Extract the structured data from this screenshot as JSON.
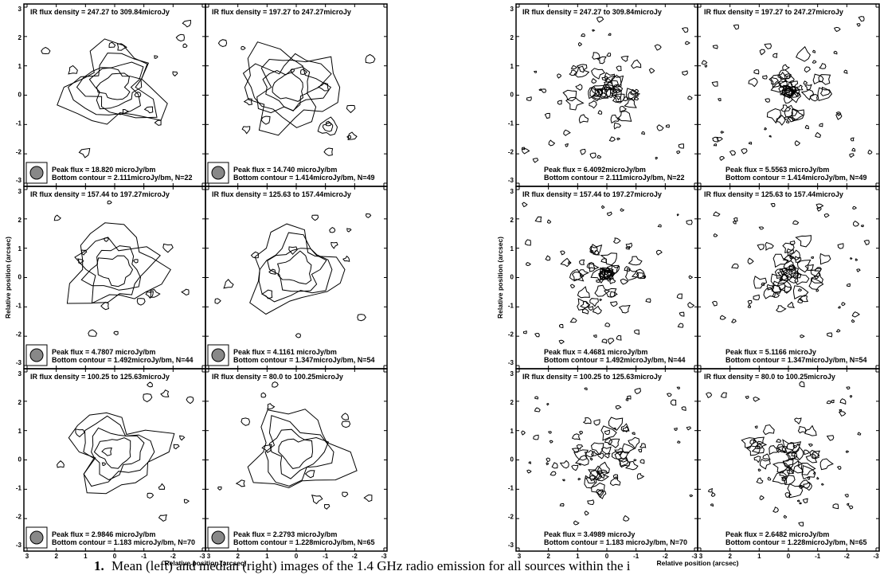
{
  "figures": [
    {
      "y_label": "Relative position (arcsec)",
      "x_label": "Relative position (arcsec)",
      "ticks": [
        "3",
        "2",
        "1",
        "0",
        "-1",
        "-2",
        "-3"
      ],
      "panels": [
        {
          "title": "IR flux density = 247.27 to 309.84microJy",
          "peak": "Peak flux = 18.820 microJy/bm",
          "bottom": "Bottom contour = 2.111microJy/bm, N=22"
        },
        {
          "title": "IR flux density = 197.27 to 247.27microJy",
          "peak": "Peak flux = 14.740 microJy/bm",
          "bottom": "Bottom contour = 1.414microJy/bm, N=49"
        },
        {
          "title": "IR flux density = 157.44 to 197.27microJy",
          "peak": "Peak flux = 4.7807 microJy/bm",
          "bottom": "Bottom contour = 1.492microJy/bm, N=44"
        },
        {
          "title": "IR flux density = 125.63 to 157.44microJy",
          "peak": "Peak flux = 4.1161 microJy/bm",
          "bottom": "Bottom contour = 1.347microJy/bm, N=54"
        },
        {
          "title": "IR flux density = 100.25 to 125.63microJy",
          "peak": "Peak flux = 2.9846 microJy/bm",
          "bottom": "Bottom contour = 1.183 microJy/bm, N=70"
        },
        {
          "title": "IR flux density = 80.0 to 100.25microJy",
          "peak": "Peak flux = 2.2793 microJy/bm",
          "bottom": "Bottom contour = 1.228microJy/bm, N=65"
        }
      ]
    },
    {
      "y_label": "Relative position (arcsec)",
      "x_label": "Relative position (arcsec)",
      "ticks": [
        "3",
        "2",
        "1",
        "0",
        "-1",
        "-2",
        "-3"
      ],
      "panels": [
        {
          "title": "IR flux density = 247.27 to 309.84microJy",
          "peak": "Peak flux = 6.4092microJy/bm",
          "bottom": "Bottom contour = 2.111microJy/bm, N=22"
        },
        {
          "title": "IR flux density = 197.27 to 247.27microJy",
          "peak": "Peak flux = 5.5563 microJy/bm",
          "bottom": "Bottom contour = 1.414microJy/bm, N=49"
        },
        {
          "title": "IR flux density = 157.44 to 197.27microJy",
          "peak": "Peak flux = 4.4681 microJy/bm",
          "bottom": "Bottom contour = 1.492microJy/bm, N=44"
        },
        {
          "title": "IR flux density = 125.63 to 157.44microJy",
          "peak": "Peak flux = 5.1166 microJy",
          "bottom": "Bottom contour = 1.347microJy/bm, N=54"
        },
        {
          "title": "IR flux density = 100.25 to 125.63microJy",
          "peak": "Peak flux = 3.4989 microJy",
          "bottom": "Bottom contour = 1.183 microJy/bm, N=70"
        },
        {
          "title": "IR flux density = 80.0 to 100.25microJy",
          "peak": "Peak flux = 2.6482 microJy/bm",
          "bottom": "Bottom contour = 1.228microJy/bm, N=65"
        }
      ]
    }
  ],
  "caption": {
    "number": "1.",
    "text": "Mean (left) and median (right) images of the 1.4 GHz radio emission for all sources within the i"
  }
}
